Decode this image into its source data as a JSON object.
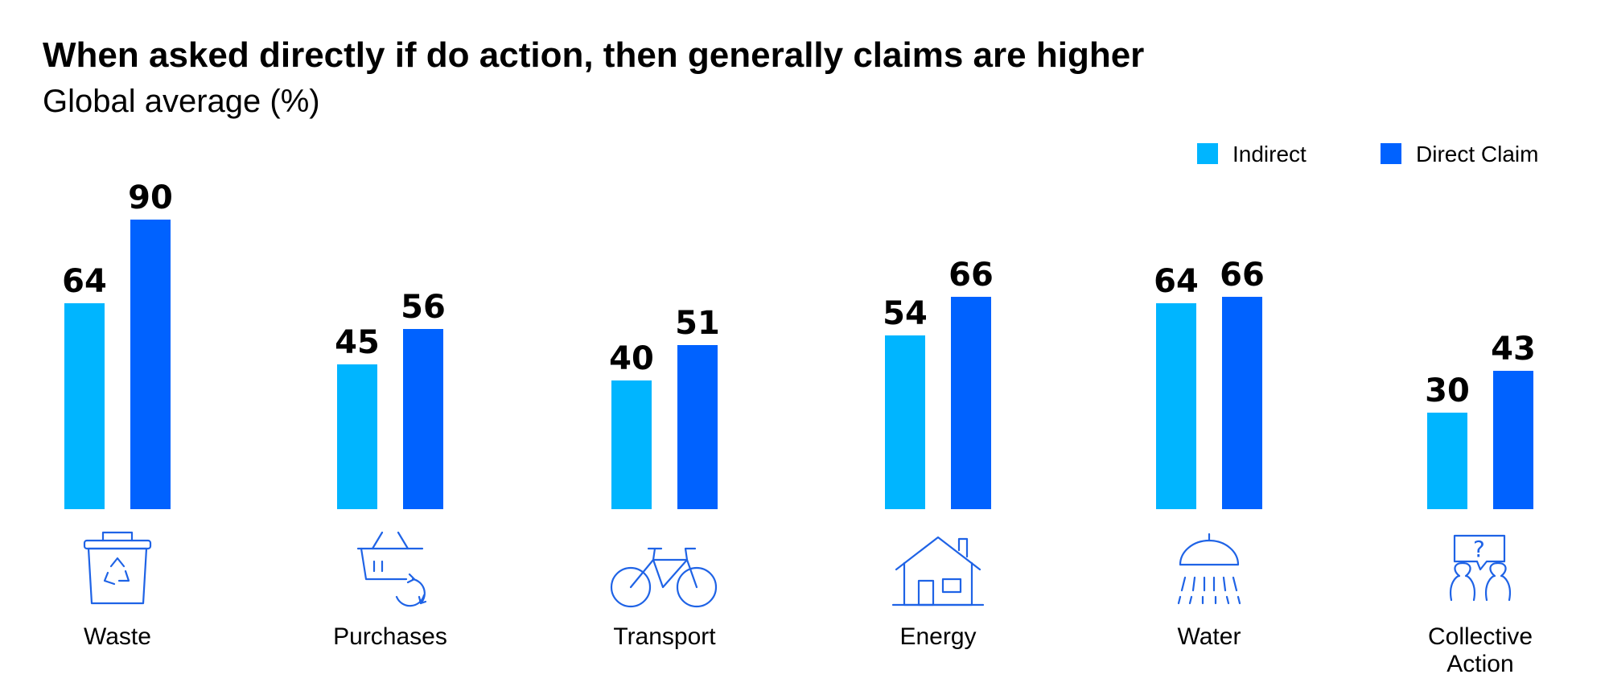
{
  "chart_data": {
    "type": "bar",
    "title": "When asked directly if do action, then generally claims are higher",
    "subtitle": "Global average (%)",
    "categories": [
      "Waste",
      "Purchases",
      "Transport",
      "Energy",
      "Water",
      "Collective Action"
    ],
    "series": [
      {
        "name": "Indirect",
        "color": "#00b5ff",
        "values": [
          64,
          45,
          40,
          54,
          64,
          30
        ]
      },
      {
        "name": "Direct Claim",
        "color": "#0062ff",
        "values": [
          90,
          56,
          51,
          66,
          66,
          43
        ]
      }
    ],
    "ylim": [
      0,
      100
    ],
    "grid": false,
    "legend": "top-right",
    "icons": [
      "recycling-bin-icon",
      "basket-recycle-icon",
      "bicycle-icon",
      "house-icon",
      "shower-icon",
      "people-question-icon"
    ]
  }
}
